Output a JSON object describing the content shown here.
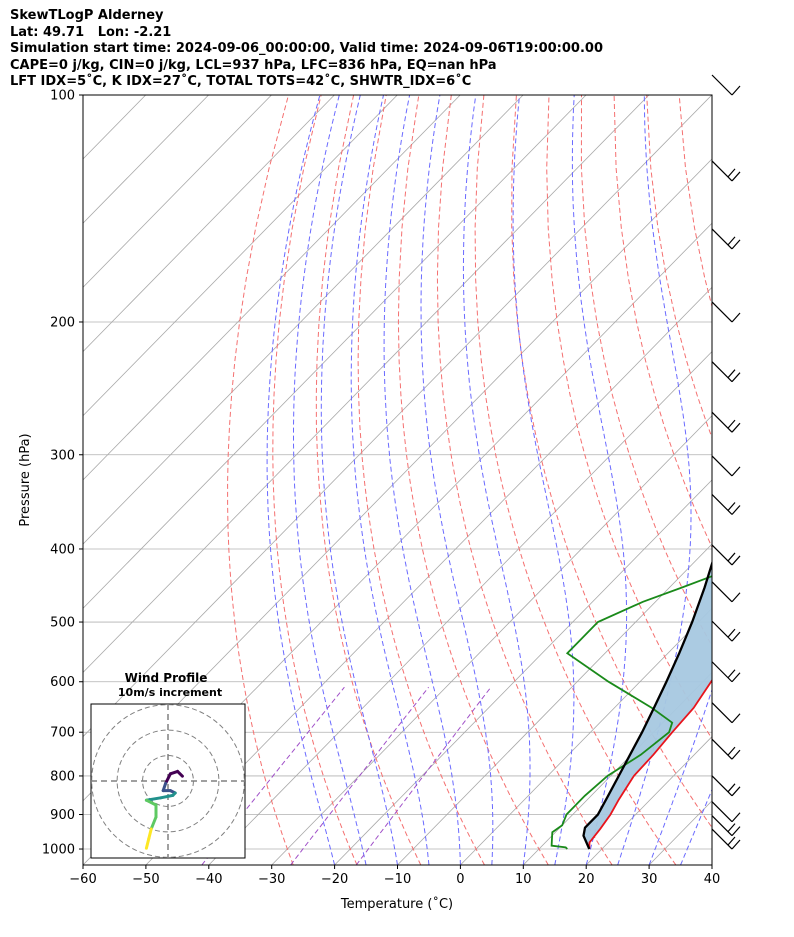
{
  "header": {
    "line1": "SkewTLogP Alderney",
    "line2": "Lat: 49.71   Lon: -2.21",
    "line3": "Simulation start time: 2024-09-06_00:00:00, Valid time: 2024-09-06T19:00:00.00",
    "line4": "CAPE=0 j/kg, CIN=0 j/kg, LCL=937 hPa, LFC=836 hPa, EQ=nan hPa",
    "line5": "LFT IDX=5˚C, K IDX=27˚C, TOTAL TOTS=42˚C, SHWTR_IDX=6˚C"
  },
  "chart_data": [
    {
      "type": "line",
      "subtype": "skew-t log-p",
      "xlabel": "Temperature (˚C)",
      "ylabel": "Pressure (hPa)",
      "xlim": [
        -60,
        40
      ],
      "ylim_pressure": [
        1050,
        100
      ],
      "y_scale": "log",
      "grid": true,
      "x_ticks": [
        -60,
        -50,
        -40,
        -30,
        -20,
        -10,
        0,
        10,
        20,
        30,
        40
      ],
      "y_ticks": [
        1000,
        900,
        800,
        700,
        600,
        500,
        400,
        300,
        200,
        100
      ],
      "series": [
        {
          "name": "",
          "color": "#e8141c",
          "points": [
            [
              1000,
              18
            ],
            [
              980,
              17
            ],
            [
              940,
              16.6
            ],
            [
              900,
              16
            ],
            [
              860,
              15
            ],
            [
              800,
              13.7
            ],
            [
              750,
              13.5
            ],
            [
              700,
              13
            ],
            [
              650,
              12.6
            ],
            [
              600,
              11.3
            ],
            [
              550,
              10
            ],
            [
              500,
              8
            ],
            [
              450,
              5
            ],
            [
              400,
              2
            ],
            [
              370,
              0.5
            ],
            [
              330,
              -3
            ],
            [
              300,
              -4.5
            ],
            [
              270,
              -7.5
            ],
            [
              240,
              -11
            ],
            [
              200,
              -16
            ],
            [
              180,
              -19
            ],
            [
              160,
              -21
            ],
            [
              140,
              -24
            ],
            [
              120,
              -28
            ],
            [
              100,
              -31
            ]
          ]
        },
        {
          "name": "",
          "color": "#1a8a1a",
          "points": [
            [
              1000,
              14.5
            ],
            [
              995,
              14
            ],
            [
              990,
              11.5
            ],
            [
              950,
              9.5
            ],
            [
              930,
              10
            ],
            [
              900,
              9
            ],
            [
              850,
              9
            ],
            [
              800,
              9.5
            ],
            [
              750,
              11.5
            ],
            [
              700,
              12.5
            ],
            [
              680,
              11.5
            ],
            [
              650,
              6
            ],
            [
              600,
              -5
            ],
            [
              550,
              -16
            ],
            [
              520,
              -16
            ],
            [
              500,
              -16
            ],
            [
              470,
              -12
            ],
            [
              450,
              -8
            ],
            [
              420,
              -2
            ],
            [
              400,
              -2
            ],
            [
              380,
              -4
            ],
            [
              360,
              -7
            ],
            [
              330,
              -8
            ],
            [
              300,
              -11
            ],
            [
              270,
              -13
            ],
            [
              240,
              -16
            ],
            [
              210,
              -21
            ],
            [
              190,
              -27
            ],
            [
              160,
              -30
            ],
            [
              140,
              -33
            ],
            [
              100,
              -50
            ]
          ]
        },
        {
          "name": "",
          "color": "#000000",
          "points": [
            [
              1000,
              18
            ],
            [
              960,
              15
            ],
            [
              937,
              14
            ],
            [
              900,
              14
            ],
            [
              850,
              12.7
            ],
            [
              800,
              11.3
            ],
            [
              750,
              9.8
            ],
            [
              700,
              8.2
            ],
            [
              650,
              6.3
            ],
            [
              600,
              4.2
            ],
            [
              550,
              1.8
            ],
            [
              500,
              -1
            ],
            [
              450,
              -4.4
            ],
            [
              400,
              -8.5
            ],
            [
              350,
              -13.7
            ],
            [
              300,
              -20.4
            ],
            [
              250,
              -29
            ],
            [
              200,
              -41
            ],
            [
              150,
              -57
            ],
            [
              100,
              -79
            ]
          ]
        }
      ],
      "shaded_area": "between temperature and parcel profile",
      "shading_color": "#a6c8e0",
      "background_lines": [
        {
          "kind": "isotherms",
          "color": "#a9a9a9",
          "style": "solid"
        },
        {
          "kind": "dry adiabats",
          "color": "#f47070",
          "style": "dashed"
        },
        {
          "kind": "moist adiabats",
          "color": "#6a6aff",
          "style": "dashed"
        },
        {
          "kind": "mixing ratio",
          "color": "#a050c8",
          "style": "dashed"
        }
      ],
      "wind_barbs_side": "right"
    },
    {
      "type": "scatter",
      "subtype": "hodograph",
      "title": "Wind Profile",
      "subtitle": "10m/s increment",
      "rings": 3,
      "colormap": "viridis",
      "trace": [
        [
          6,
          -2
        ],
        [
          4,
          -4
        ],
        [
          1,
          -3
        ],
        [
          -1,
          1
        ],
        [
          -2,
          4
        ],
        [
          1,
          4
        ],
        [
          3,
          5
        ],
        [
          2,
          6
        ],
        [
          -3,
          7
        ],
        [
          -9,
          8
        ],
        [
          -5,
          10
        ],
        [
          -5,
          15
        ],
        [
          -7,
          20
        ],
        [
          -8,
          24
        ],
        [
          -9,
          28
        ]
      ]
    }
  ]
}
